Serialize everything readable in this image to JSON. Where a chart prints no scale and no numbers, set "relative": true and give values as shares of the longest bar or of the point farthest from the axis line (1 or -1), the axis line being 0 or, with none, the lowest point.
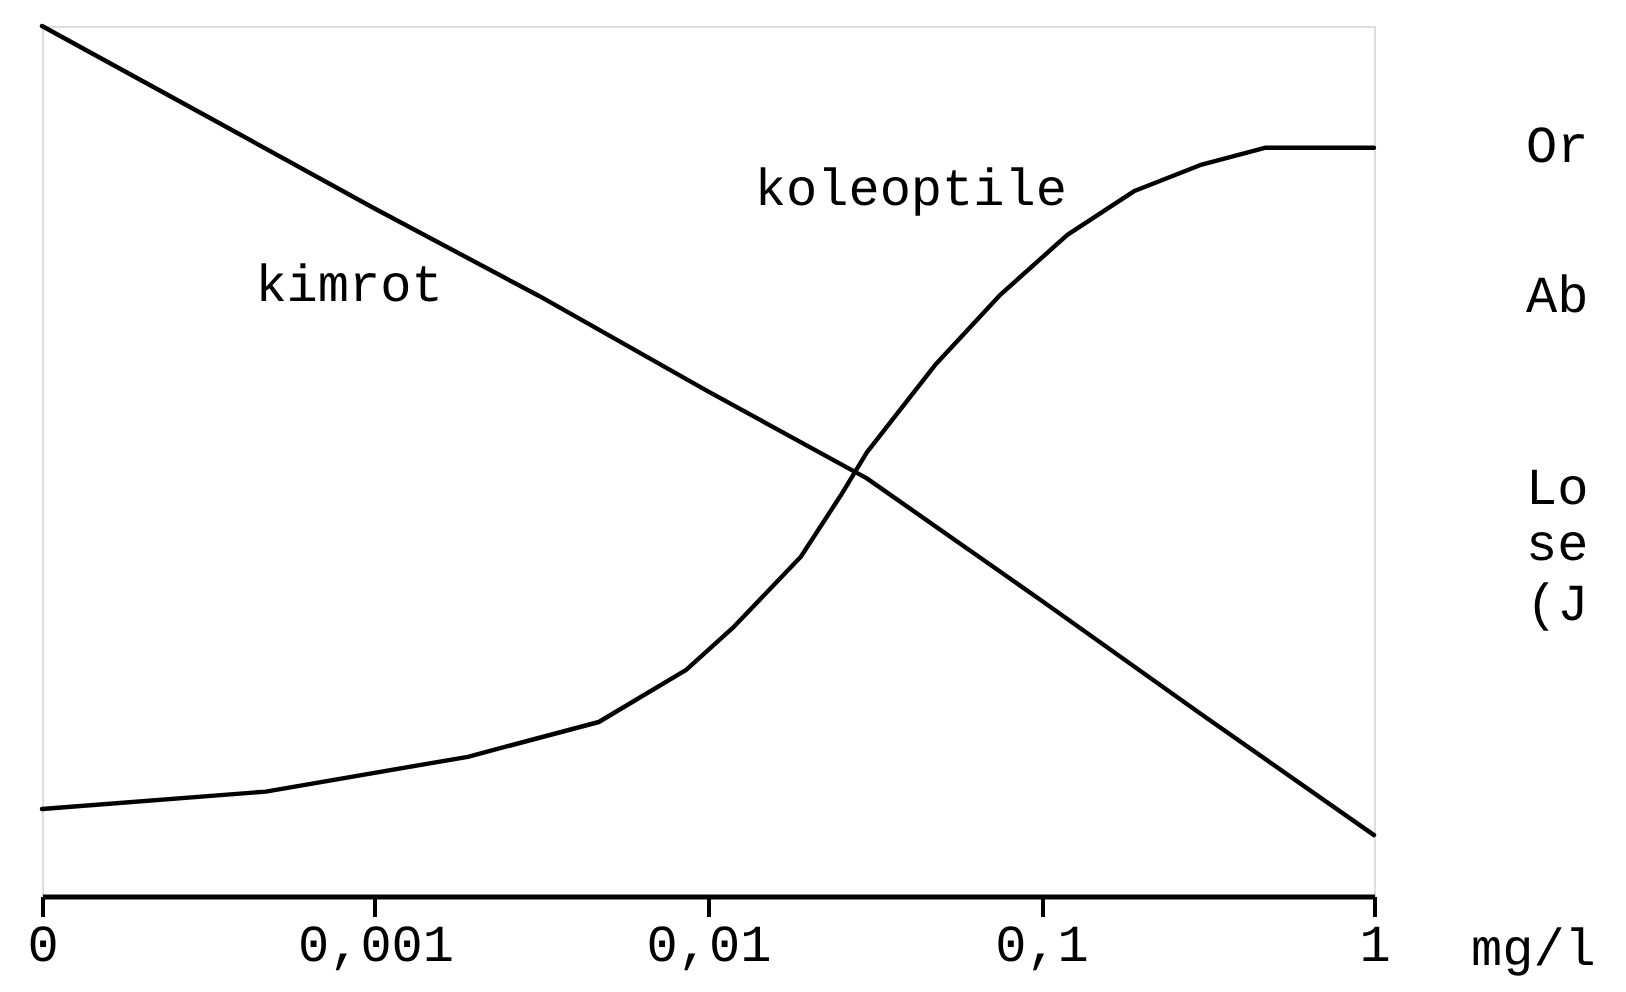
{
  "chart_data": {
    "type": "line",
    "relative": true,
    "log": "x",
    "series": [
      {
        "name": "kimrot",
        "color": "#000000",
        "x": [
          0.0001,
          0.0003,
          0.001,
          0.0031,
          0.01,
          0.03,
          0.1,
          0.3,
          1
        ],
        "values": [
          1.0,
          0.9,
          0.79,
          0.69,
          0.58,
          0.48,
          0.34,
          0.21,
          0.07
        ]
      },
      {
        "name": "koleoptile",
        "color": "#000000",
        "x": [
          0.0001,
          0.00047,
          0.0019,
          0.0047,
          0.0086,
          0.012,
          0.019,
          0.025,
          0.03,
          0.048,
          0.075,
          0.12,
          0.19,
          0.3,
          0.47,
          0.76,
          1
        ],
        "values": [
          0.1,
          0.12,
          0.16,
          0.2,
          0.26,
          0.31,
          0.39,
          0.46,
          0.51,
          0.61,
          0.69,
          0.76,
          0.81,
          0.84,
          0.86,
          0.86,
          0.86
        ]
      }
    ],
    "xlim": [
      0.0001,
      1
    ],
    "xticks": [
      {
        "value": 0.0001,
        "label": "0"
      },
      {
        "value": 0.001,
        "label": "0,001"
      },
      {
        "value": 0.01,
        "label": "0,01"
      },
      {
        "value": 0.1,
        "label": "0,1"
      },
      1
    ],
    "xlabel": "mg/l",
    "annotations": [
      "Or",
      "Ab",
      "Lo",
      "se",
      "(J"
    ]
  }
}
